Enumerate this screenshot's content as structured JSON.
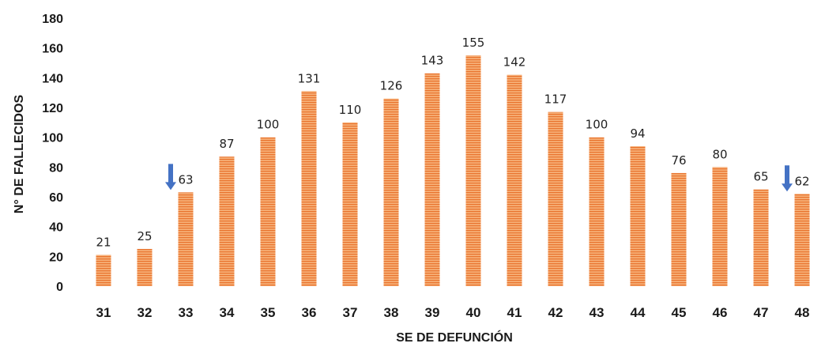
{
  "chart_data": {
    "type": "bar",
    "categories": [
      "31",
      "32",
      "33",
      "34",
      "35",
      "36",
      "37",
      "38",
      "39",
      "40",
      "41",
      "42",
      "43",
      "44",
      "45",
      "46",
      "47",
      "48"
    ],
    "values": [
      21,
      25,
      63,
      87,
      100,
      131,
      110,
      126,
      143,
      155,
      142,
      117,
      100,
      94,
      76,
      80,
      65,
      62
    ],
    "data_labels": [
      "21",
      "25",
      "63",
      "87",
      "100",
      "131",
      "110",
      "126",
      "143",
      "155",
      "142",
      "117",
      "100",
      "94",
      "76",
      "80",
      "65",
      "62"
    ],
    "y_ticks": [
      "0",
      "20",
      "40",
      "60",
      "80",
      "100",
      "120",
      "140",
      "160",
      "180"
    ],
    "xlabel": "SE DE DEFUNCIÓN",
    "ylabel": "N° DE FALLECIDOS",
    "ylim": [
      0,
      180
    ],
    "grid": false,
    "bar_color": "#F4A460",
    "bar_stripe_color": "#E8793A",
    "markers": [
      {
        "category": "33",
        "kind": "down-arrow",
        "color": "#4472C4"
      },
      {
        "category": "48",
        "kind": "down-arrow",
        "color": "#4472C4"
      }
    ]
  }
}
